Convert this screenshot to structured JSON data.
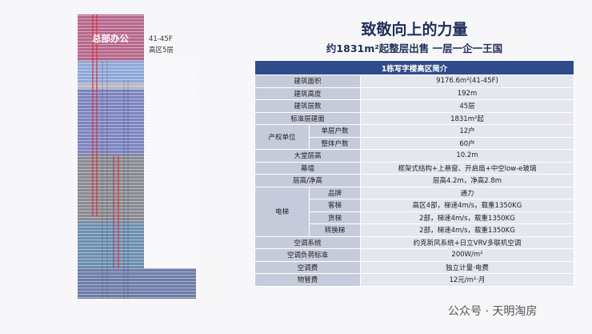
{
  "building": {
    "label": "总部办公",
    "floors": "41-45F",
    "zone": "高区5层"
  },
  "header": {
    "title": "致敬向上的力量",
    "subtitle": "约1831m²起整层出售 一层一企一王国"
  },
  "table": {
    "caption": "1栋写字楼高区简介",
    "rows": [
      [
        "建筑面积",
        "9176.6m²(41-45F)"
      ],
      [
        "建筑高度",
        "192m"
      ],
      [
        "建筑层数",
        "45层"
      ],
      [
        "标准层建面",
        "1831m²起"
      ],
      {
        "label": "产权单位",
        "items": [
          [
            "单层户数",
            "12户"
          ],
          [
            "整体户数",
            "60户"
          ]
        ]
      },
      [
        "大堂层高",
        "10.2m"
      ],
      [
        "幕墙",
        "框架式结构+上悬窗、开启扇+中空low-e玻璃"
      ],
      [
        "层高/净高",
        "层高4.2m，净高2.8m"
      ],
      {
        "label": "电梯",
        "items": [
          [
            "品牌",
            "通力"
          ],
          [
            "客梯",
            "高区4部，梯速4m/s，载重1350KG"
          ],
          [
            "货梯",
            "2部，梯速4m/s，载重1350KG"
          ],
          [
            "转换梯",
            "2部，梯速4m/s，载重1350KG"
          ]
        ]
      },
      [
        "空调系统",
        "约克新风系统+日立VRV多联机空调"
      ],
      [
        "空调负荷标准",
        "200W/m²"
      ],
      [
        "空调费",
        "独立计量·电费"
      ],
      [
        "物管费",
        "12元/m²·月"
      ]
    ]
  },
  "watermark": "公众号 · 天明淘房"
}
